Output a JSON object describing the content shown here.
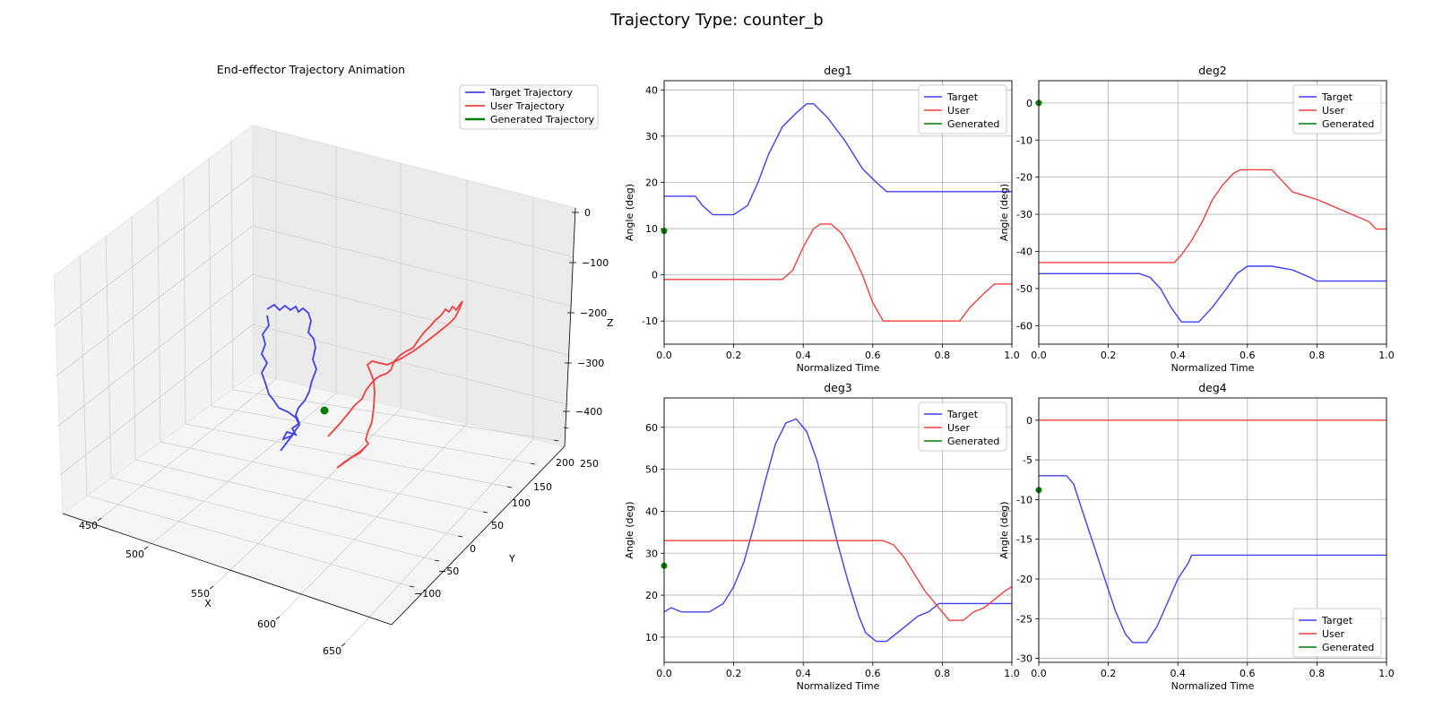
{
  "figure_title": "Trajectory Type: counter_b",
  "colors": {
    "target": "#4040f0",
    "user": "#f04040",
    "generated": "#008000",
    "grid": "#b0b0b0"
  },
  "chart_data": [
    {
      "type": "line",
      "subtype": "3d",
      "title": "End-effector Trajectory Animation",
      "xlabel": "X",
      "ylabel": "Y",
      "zlabel": "Z",
      "x_ticks": [
        "450",
        "500",
        "550",
        "600",
        "650"
      ],
      "y_ticks": [
        "−100",
        "−50",
        "0",
        "50",
        "100",
        "150",
        "200",
        "250"
      ],
      "z_ticks": [
        "0",
        "−100",
        "−200",
        "−300",
        "−400"
      ],
      "legend": [
        "Target Trajectory",
        "User Trajectory",
        "Generated Trajectory"
      ],
      "legend_position": "top-right",
      "grid": true
    },
    {
      "type": "line",
      "title": "deg1",
      "xlabel": "Normalized Time",
      "ylabel": "Angle (deg)",
      "xlim": [
        0,
        1
      ],
      "ylim": [
        -15,
        42
      ],
      "x_ticks": [
        0,
        0.2,
        0.4,
        0.6,
        0.8,
        1.0
      ],
      "y_ticks": [
        -10,
        0,
        10,
        20,
        30,
        40
      ],
      "legend_position": "top-right",
      "grid": true,
      "series": [
        {
          "name": "Target",
          "x": [
            0,
            0.09,
            0.11,
            0.14,
            0.2,
            0.24,
            0.27,
            0.3,
            0.34,
            0.38,
            0.41,
            0.43,
            0.47,
            0.52,
            0.57,
            0.61,
            0.64,
            1.0
          ],
          "y": [
            17,
            17,
            15,
            13,
            13,
            15,
            20,
            26,
            32,
            35,
            37,
            37,
            34,
            29,
            23,
            20,
            18,
            18
          ]
        },
        {
          "name": "User",
          "x": [
            0,
            0.34,
            0.37,
            0.4,
            0.43,
            0.45,
            0.48,
            0.51,
            0.54,
            0.57,
            0.6,
            0.63,
            0.85,
            0.88,
            0.92,
            0.95,
            1.0
          ],
          "y": [
            -1,
            -1,
            1,
            6,
            10,
            11,
            11,
            9,
            5,
            0,
            -6,
            -10,
            -10,
            -7,
            -4,
            -2,
            -2
          ]
        },
        {
          "name": "Generated",
          "x": [
            0
          ],
          "y": [
            9.5
          ]
        }
      ]
    },
    {
      "type": "line",
      "title": "deg2",
      "xlabel": "Normalized Time",
      "ylabel": "Angle (deg)",
      "xlim": [
        0,
        1
      ],
      "ylim": [
        -65,
        6
      ],
      "x_ticks": [
        0,
        0.2,
        0.4,
        0.6,
        0.8,
        1.0
      ],
      "y_ticks": [
        -60,
        -50,
        -40,
        -30,
        -20,
        -10,
        0
      ],
      "legend_position": "top-right",
      "grid": true,
      "series": [
        {
          "name": "Target",
          "x": [
            0,
            0.29,
            0.32,
            0.35,
            0.38,
            0.41,
            0.46,
            0.5,
            0.54,
            0.57,
            0.6,
            0.67,
            0.73,
            0.78,
            0.8,
            1.0
          ],
          "y": [
            -46,
            -46,
            -47,
            -50,
            -55,
            -59,
            -59,
            -55,
            -50,
            -46,
            -44,
            -44,
            -45,
            -47,
            -48,
            -48
          ]
        },
        {
          "name": "User",
          "x": [
            0,
            0.39,
            0.41,
            0.44,
            0.47,
            0.5,
            0.53,
            0.56,
            0.58,
            0.67,
            0.7,
            0.73,
            0.8,
            0.85,
            0.9,
            0.95,
            0.97,
            1.0
          ],
          "y": [
            -43,
            -43,
            -41,
            -37,
            -32,
            -26,
            -22,
            -19,
            -18,
            -18,
            -21,
            -24,
            -26,
            -28,
            -30,
            -32,
            -34,
            -34
          ]
        },
        {
          "name": "Generated",
          "x": [
            0
          ],
          "y": [
            0
          ]
        }
      ]
    },
    {
      "type": "line",
      "title": "deg3",
      "xlabel": "Normalized Time",
      "ylabel": "Angle (deg)",
      "xlim": [
        0,
        1
      ],
      "ylim": [
        4,
        67
      ],
      "x_ticks": [
        0,
        0.2,
        0.4,
        0.6,
        0.8,
        1.0
      ],
      "y_ticks": [
        10,
        20,
        30,
        40,
        50,
        60
      ],
      "legend_position": "top-right",
      "grid": true,
      "series": [
        {
          "name": "Target",
          "x": [
            0,
            0.02,
            0.05,
            0.13,
            0.17,
            0.2,
            0.23,
            0.26,
            0.29,
            0.32,
            0.35,
            0.38,
            0.41,
            0.44,
            0.47,
            0.5,
            0.53,
            0.56,
            0.58,
            0.61,
            0.64,
            0.67,
            0.7,
            0.73,
            0.76,
            0.79,
            1.0
          ],
          "y": [
            16,
            17,
            16,
            16,
            18,
            22,
            28,
            37,
            47,
            56,
            61,
            62,
            59,
            52,
            42,
            32,
            23,
            15,
            11,
            9,
            9,
            11,
            13,
            15,
            16,
            18,
            18
          ]
        },
        {
          "name": "User",
          "x": [
            0,
            0.63,
            0.66,
            0.69,
            0.72,
            0.75,
            0.78,
            0.8,
            0.82,
            0.86,
            0.89,
            0.92,
            0.95,
            0.98,
            1.0
          ],
          "y": [
            33,
            33,
            32,
            29,
            25,
            21,
            18,
            16,
            14,
            14,
            16,
            17,
            19,
            21,
            22
          ]
        },
        {
          "name": "Generated",
          "x": [
            0
          ],
          "y": [
            27
          ]
        }
      ]
    },
    {
      "type": "line",
      "title": "deg4",
      "xlabel": "Normalized Time",
      "ylabel": "Angle (deg)",
      "xlim": [
        0,
        1
      ],
      "ylim": [
        -30.5,
        2.8
      ],
      "x_ticks": [
        0,
        0.2,
        0.4,
        0.6,
        0.8,
        1.0
      ],
      "y_ticks": [
        -30,
        -25,
        -20,
        -15,
        -10,
        -5,
        0
      ],
      "legend_position": "bottom-right",
      "grid": true,
      "series": [
        {
          "name": "Target",
          "x": [
            0,
            0.08,
            0.1,
            0.13,
            0.16,
            0.19,
            0.22,
            0.25,
            0.27,
            0.31,
            0.34,
            0.37,
            0.4,
            0.43,
            0.44,
            1.0
          ],
          "y": [
            -7,
            -7,
            -8,
            -12,
            -16,
            -20,
            -24,
            -27,
            -28,
            -28,
            -26,
            -23,
            -20,
            -18,
            -17,
            -17
          ]
        },
        {
          "name": "User",
          "x": [
            0,
            1.0
          ],
          "y": [
            0,
            0
          ]
        },
        {
          "name": "Generated",
          "x": [
            0
          ],
          "y": [
            -8.8
          ]
        }
      ]
    }
  ]
}
